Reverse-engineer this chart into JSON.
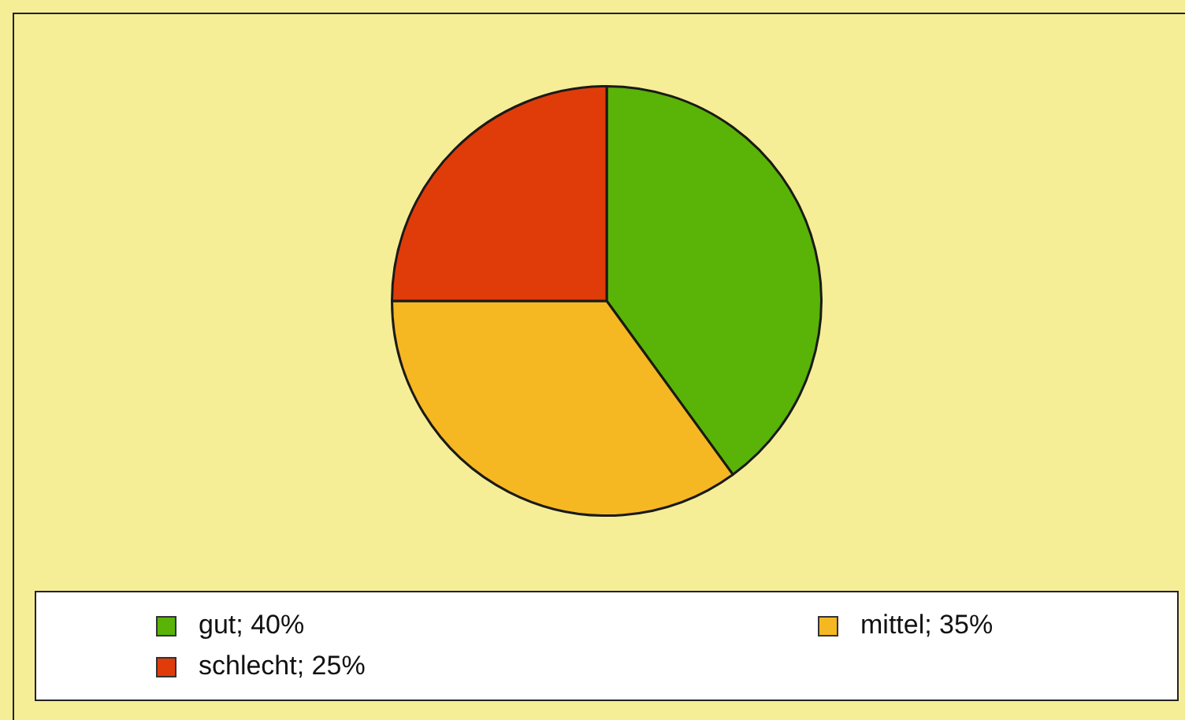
{
  "chart_data": {
    "type": "pie",
    "categories": [
      "gut; 40%",
      "mittel; 35%",
      "schlecht; 25%"
    ],
    "values": [
      40,
      35,
      25
    ],
    "colors": [
      "#5ab307",
      "#f5b823",
      "#e03c0a"
    ],
    "legend": "bottom"
  }
}
